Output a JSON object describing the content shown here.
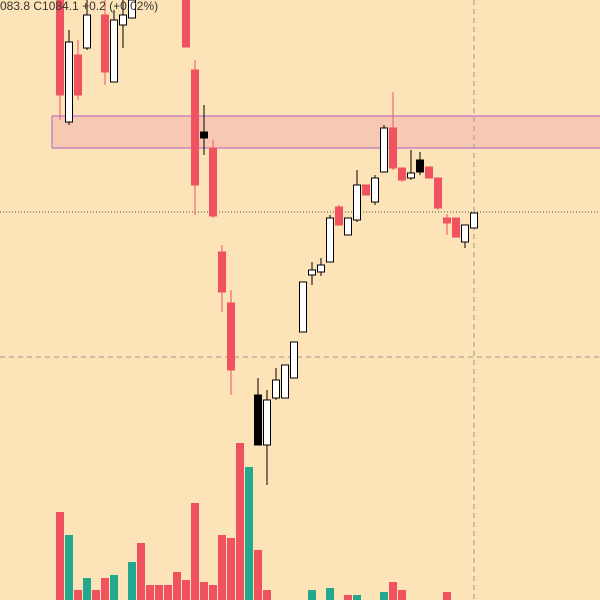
{
  "chart_data": {
    "type": "candlestick",
    "header": "083.8  C1084.1  +0.2 (+0.02%)",
    "ylim": [
      0,
      600
    ],
    "x": [
      0,
      1,
      2,
      3,
      5,
      6,
      7,
      8,
      14,
      15,
      16,
      17,
      18,
      19,
      22,
      23,
      24,
      25,
      26,
      27,
      28,
      29,
      30,
      31,
      32,
      33,
      34,
      35,
      36,
      37,
      38,
      39,
      40,
      41,
      42,
      43,
      44,
      45,
      46
    ],
    "open": [
      600,
      478,
      545,
      552,
      585,
      518,
      575,
      582,
      600,
      530,
      468,
      452,
      348,
      297,
      205,
      155,
      202,
      202,
      222,
      268,
      325,
      328,
      338,
      393,
      365,
      380,
      415,
      398,
      428,
      472,
      432,
      422,
      440,
      433,
      422,
      382,
      382,
      358,
      372
    ],
    "high": [
      600,
      570,
      560,
      600,
      600,
      590,
      600,
      600,
      600,
      540,
      495,
      460,
      355,
      310,
      222,
      210,
      232,
      235,
      258,
      318,
      338,
      342,
      385,
      395,
      382,
      430,
      415,
      425,
      475,
      508,
      432,
      450,
      448,
      433,
      422,
      386,
      382,
      375,
      387
    ],
    "low": [
      480,
      475,
      500,
      550,
      515,
      518,
      552,
      582,
      553,
      385,
      445,
      382,
      288,
      205,
      155,
      115,
      200,
      202,
      222,
      268,
      315,
      324,
      338,
      375,
      365,
      378,
      405,
      395,
      428,
      430,
      418,
      420,
      425,
      422,
      390,
      365,
      363,
      352,
      372
    ],
    "close": [
      505,
      558,
      505,
      585,
      528,
      580,
      585,
      600,
      553,
      415,
      462,
      384,
      308,
      230,
      155,
      200,
      220,
      235,
      258,
      318,
      330,
      335,
      382,
      375,
      382,
      415,
      405,
      422,
      472,
      432,
      420,
      427,
      428,
      422,
      392,
      377,
      363,
      375,
      387
    ],
    "styles": [
      "red",
      "hollow",
      "red",
      "hollow",
      "red",
      "hollow",
      "hollow",
      "hollow",
      "red",
      "red",
      "black",
      "red",
      "red",
      "red",
      "black",
      "hollow",
      "hollow",
      "hollow",
      "hollow",
      "hollow",
      "hollow",
      "hollow",
      "hollow",
      "red",
      "hollow",
      "hollow",
      "red",
      "hollow",
      "hollow",
      "red",
      "red",
      "hollow",
      "black",
      "red",
      "red",
      "red",
      "red",
      "hollow",
      "hollow"
    ],
    "colors": {
      "red": "#f0525f",
      "hollow": "#ffffff",
      "black": "#000000",
      "teal": "#22a88f"
    },
    "volume": {
      "ylim": [
        0,
        600
      ],
      "x": [
        0,
        1,
        2,
        3,
        4,
        5,
        6,
        8,
        9,
        10,
        11,
        12,
        13,
        14,
        15,
        16,
        17,
        18,
        19,
        20,
        21,
        22,
        23,
        28,
        30,
        32,
        33,
        36,
        37,
        38,
        43
      ],
      "values": [
        88,
        65,
        10,
        22,
        10,
        22,
        25,
        38,
        57,
        15,
        15,
        15,
        28,
        20,
        97,
        18,
        15,
        65,
        62,
        157,
        133,
        50,
        10,
        10,
        12,
        5,
        5,
        8,
        18,
        10,
        8
      ],
      "styles": [
        "red",
        "teal",
        "red",
        "teal",
        "red",
        "red",
        "teal",
        "teal",
        "red",
        "red",
        "red",
        "red",
        "red",
        "red",
        "red",
        "red",
        "red",
        "red",
        "red",
        "red",
        "teal",
        "red",
        "red",
        "teal",
        "teal",
        "red",
        "teal",
        "teal",
        "red",
        "red",
        "red"
      ]
    }
  }
}
